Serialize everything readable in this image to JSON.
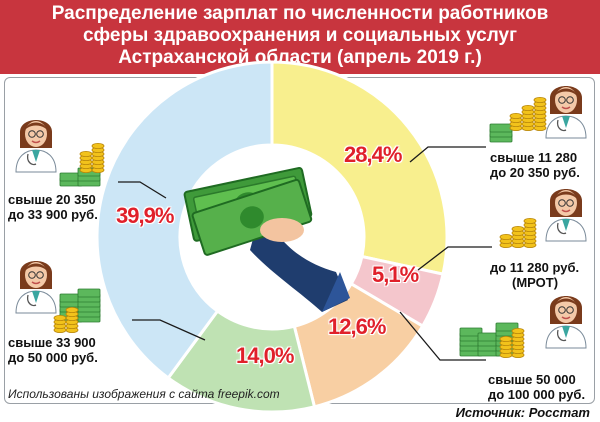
{
  "header": {
    "line1": "Распределение зарплат по численности работников",
    "line2": "сферы здравоохранения и социальных услуг",
    "line3": "Астраханской области (апрель 2019 г.)"
  },
  "chart_data": {
    "type": "pie",
    "title": "Распределение зарплат по численности работников сферы здравоохранения и социальных услуг Астраханской области (апрель 2019 г.)",
    "slices": [
      {
        "label": "свыше 11 280 до 20 350 руб.",
        "value": 28.4,
        "value_label": "28,4%",
        "color": "#f8ef8e"
      },
      {
        "label": "до 11 280 руб. (МРОТ)",
        "value": 5.1,
        "value_label": "5,1%",
        "color": "#f4c6cc"
      },
      {
        "label": "свыше 50 000 до 100 000 руб.",
        "value": 12.6,
        "value_label": "12,6%",
        "color": "#f8cfa3"
      },
      {
        "label": "свыше 33 900 до 50 000 руб.",
        "value": 14.0,
        "value_label": "14,0%",
        "color": "#bfe2b3"
      },
      {
        "label": "свыше 20 350 до 33 900 руб.",
        "value": 39.9,
        "value_label": "39,9%",
        "color": "#cce6f6"
      }
    ]
  },
  "labels": {
    "r1_line1": "свыше 11 280",
    "r1_line2": "до 20 350 руб.",
    "r2_line1": "до 11 280 руб.",
    "r2_line2": "(МРОТ)",
    "r3_line1": "свыше 50 000",
    "r3_line2": "до 100 000 руб.",
    "l1_line1": "свыше 20 350",
    "l1_line2": "до 33 900 руб.",
    "l2_line1": "свыше 33 900",
    "l2_line2": "до 50 000 руб."
  },
  "footer": {
    "credit": "Использованы изображения с сайта freepik.com",
    "source": "Источник: Росстат"
  },
  "icons": [
    "doctor-icon",
    "coins-icon",
    "banknotes-icon",
    "hand-money-icon"
  ]
}
